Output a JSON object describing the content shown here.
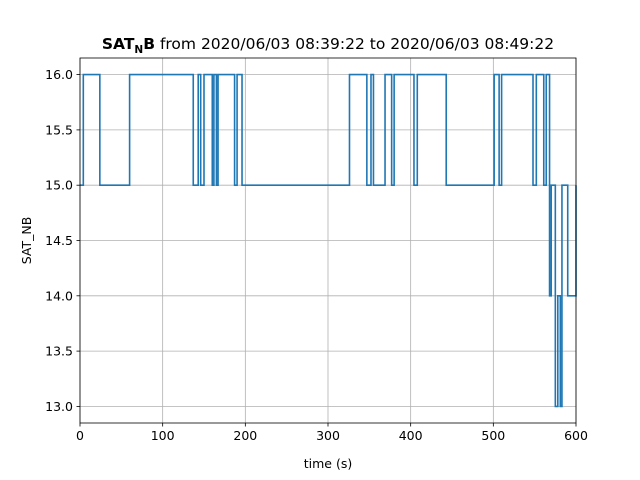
{
  "chart_data": {
    "type": "line",
    "step": true,
    "title": {
      "var_main": "SAT",
      "var_sub": "N",
      "var_end": "B",
      "rest": " from 2020/06/03 08:39:22 to 2020/06/03 08:49:22"
    },
    "xlabel": "time (s)",
    "ylabel": "SAT_NB",
    "xlim": [
      0,
      600
    ],
    "ylim": [
      12.85,
      16.15
    ],
    "xticks": [
      0,
      100,
      200,
      300,
      400,
      500,
      600
    ],
    "xtick_labels": [
      "0",
      "100",
      "200",
      "300",
      "400",
      "500",
      "600"
    ],
    "yticks": [
      13.0,
      13.5,
      14.0,
      14.5,
      15.0,
      15.5,
      16.0
    ],
    "ytick_labels": [
      "13.0",
      "13.5",
      "14.0",
      "14.5",
      "15.0",
      "15.5",
      "16.0"
    ],
    "grid": true,
    "color": "#1f77b4",
    "series": [
      {
        "x": [
          0,
          4,
          24,
          60,
          137,
          143,
          146,
          150,
          160,
          162,
          165,
          167,
          187,
          190,
          196,
          326,
          347,
          352,
          355,
          369,
          377,
          380,
          404,
          408,
          443,
          501,
          507,
          510,
          548,
          552,
          561,
          564,
          568,
          570,
          575,
          578,
          581,
          583,
          590,
          600
        ],
        "y": [
          15,
          16,
          15,
          16,
          15,
          16,
          15,
          16,
          15,
          16,
          15,
          16,
          15,
          16,
          15,
          16,
          15,
          16,
          15,
          16,
          15,
          16,
          15,
          16,
          15,
          16,
          15,
          16,
          15,
          16,
          15,
          16,
          14,
          15,
          13,
          14,
          13,
          15,
          14,
          15
        ]
      }
    ]
  }
}
